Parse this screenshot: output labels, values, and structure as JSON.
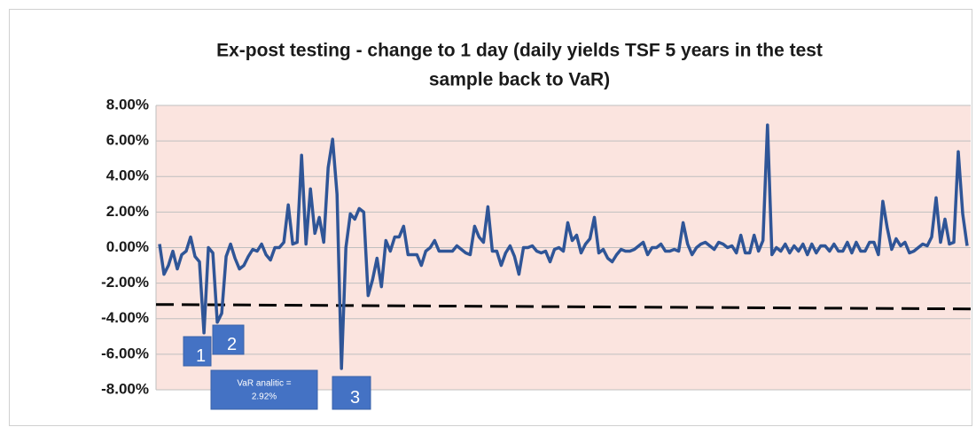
{
  "chart_data": {
    "type": "line",
    "title": [
      "Ex-post testing - change to 1 day (daily yields TSF 5 years in the test",
      "sample back to VaR)"
    ],
    "ylim": [
      -8,
      8
    ],
    "yticks": [
      {
        "value": -8,
        "label": "-8.00%"
      },
      {
        "value": -6,
        "label": "-6.00%"
      },
      {
        "value": -4,
        "label": "-4.00%"
      },
      {
        "value": -2,
        "label": "-2.00%"
      },
      {
        "value": 0,
        "label": "0.00%"
      },
      {
        "value": 2,
        "label": "2.00%"
      },
      {
        "value": 4,
        "label": "4.00%"
      },
      {
        "value": 6,
        "label": "6.00%"
      },
      {
        "value": 8,
        "label": "8.00%"
      }
    ],
    "grid": true,
    "series": [
      {
        "color": "#2f5597",
        "values": [
          0.2,
          -1.5,
          -1.0,
          -0.2,
          -1.2,
          -0.4,
          -0.2,
          0.6,
          -0.5,
          -0.8,
          -4.8,
          0,
          -0.3,
          -4.2,
          -3.7,
          -0.5,
          0.2,
          -0.6,
          -1.2,
          -1.0,
          -0.5,
          -0.1,
          -0.2,
          0.2,
          -0.4,
          -0.7,
          0,
          0,
          0.3,
          2.4,
          0.2,
          0.3,
          5.2,
          0.2,
          3.3,
          0.8,
          1.7,
          0.3,
          4.5,
          6.1,
          3.0,
          -6.8,
          0,
          1.9,
          1.6,
          2.2,
          2.0,
          -2.7,
          -1.8,
          -0.6,
          -2.2,
          0.4,
          -0.2,
          0.6,
          0.6,
          1.2,
          -0.4,
          -0.4,
          -0.4,
          -1.0,
          -0.2,
          0,
          0.4,
          -0.2,
          -0.2,
          -0.2,
          -0.2,
          0.1,
          -0.1,
          -0.3,
          -0.4,
          1.2,
          0.6,
          0.3,
          2.3,
          -0.2,
          -0.2,
          -1.0,
          -0.3,
          0.1,
          -0.5,
          -1.5,
          0,
          0,
          0.1,
          -0.2,
          -0.3,
          -0.2,
          -0.8,
          -0.1,
          0,
          -0.2,
          1.4,
          0.4,
          0.7,
          -0.3,
          0.2,
          0.5,
          1.7,
          -0.3,
          -0.1,
          -0.6,
          -0.8,
          -0.4,
          -0.1,
          -0.2,
          -0.2,
          -0.1,
          0.1,
          0.3,
          -0.4,
          0,
          0,
          0.2,
          -0.2,
          -0.2,
          -0.1,
          -0.2,
          1.4,
          0.2,
          -0.4,
          0,
          0.2,
          0.3,
          0.1,
          -0.1,
          0.3,
          0.2,
          0,
          0.1,
          -0.3,
          0.7,
          -0.3,
          -0.3,
          0.7,
          -0.2,
          0.4,
          6.9,
          -0.4,
          0,
          -0.2,
          0.2,
          -0.3,
          0.1,
          -0.2,
          0.2,
          -0.4,
          0.2,
          -0.3,
          0.1,
          0.1,
          -0.2,
          0.2,
          -0.2,
          -0.2,
          0.3,
          -0.3,
          0.3,
          -0.2,
          -0.2,
          0.3,
          0.3,
          -0.4,
          2.6,
          1.1,
          -0.1,
          0.5,
          0.1,
          0.3,
          -0.3,
          -0.2,
          0,
          0.2,
          0.1,
          0.6,
          2.8,
          0.3,
          1.6,
          0.2,
          0.3,
          5.4,
          1.9,
          0.1
        ]
      }
    ],
    "reference_line": {
      "color": "#000000",
      "values": [
        -3.2,
        -3.45
      ]
    },
    "background": "#fbe4df",
    "annotations": [
      {
        "text": "1"
      },
      {
        "text": "2"
      },
      {
        "text": "VaR analitic =",
        "text2": "2.92%"
      },
      {
        "text": "3"
      }
    ]
  }
}
